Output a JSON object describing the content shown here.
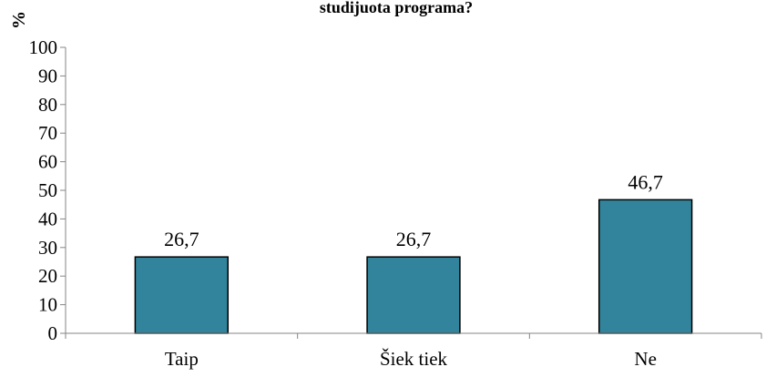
{
  "chart_data": {
    "type": "bar",
    "title": "studijuota programa?",
    "ylabel": "%",
    "xlabel": "",
    "categories": [
      "Taip",
      "Šiek tiek",
      "Ne"
    ],
    "values": [
      26.7,
      26.7,
      46.7
    ],
    "data_labels": [
      "26,7",
      "26,7",
      "46,7"
    ],
    "ylim": [
      0,
      100
    ],
    "yticks": [
      0,
      10,
      20,
      30,
      40,
      50,
      60,
      70,
      80,
      90,
      100
    ],
    "grid": false,
    "legend": "none",
    "bar_color": "#31849b",
    "bar_edge_color": "#000000"
  }
}
